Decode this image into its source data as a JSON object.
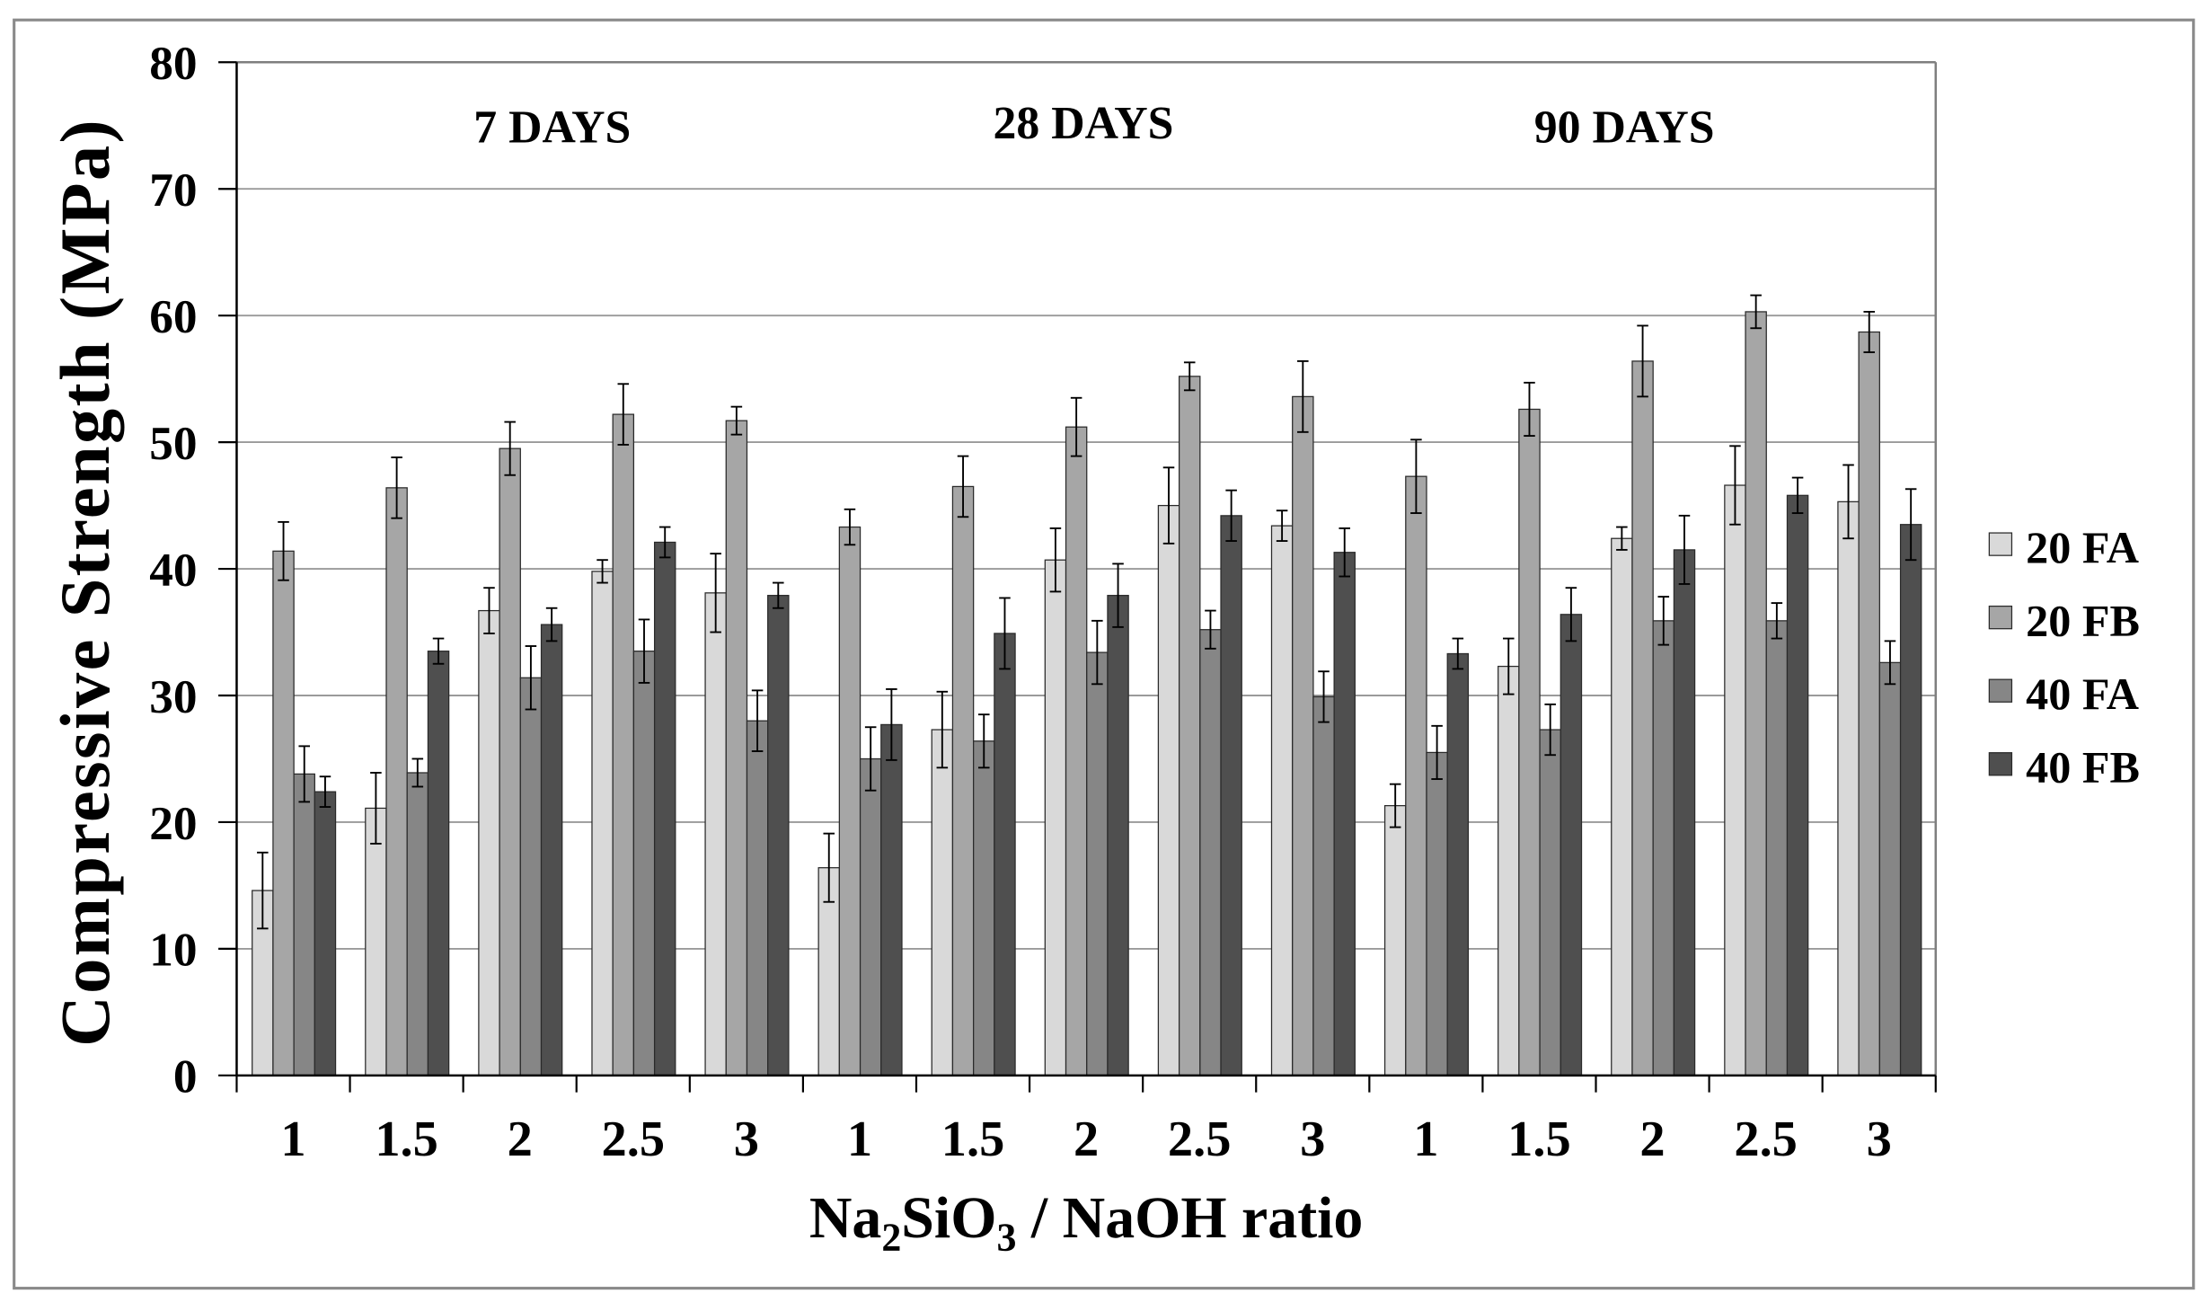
{
  "chart_data": {
    "type": "bar",
    "title": "",
    "period_labels": [
      "7 DAYS",
      "28 DAYS",
      "90 DAYS"
    ],
    "categories": [
      "1",
      "1.5",
      "2",
      "2.5",
      "3",
      "1",
      "1.5",
      "2",
      "2.5",
      "3",
      "1",
      "1.5",
      "2",
      "2.5",
      "3"
    ],
    "ylabel": "Compressive Strength (MPa)",
    "xlabel_parts": [
      {
        "text": "Na"
      },
      {
        "text": "2",
        "sub": true
      },
      {
        "text": "SiO"
      },
      {
        "text": "3",
        "sub": true
      },
      {
        "text": " / NaOH ratio"
      }
    ],
    "ylim": [
      0,
      80
    ],
    "yticks": [
      0,
      10,
      20,
      30,
      40,
      50,
      60,
      70,
      80
    ],
    "grid": true,
    "legend_position": "right",
    "series": [
      {
        "name": "20 FA",
        "color": "#d9d9d9",
        "values": [
          14.6,
          21.1,
          36.7,
          39.8,
          38.1,
          16.4,
          27.3,
          40.7,
          45.0,
          43.4,
          21.3,
          32.3,
          42.4,
          46.6,
          45.3
        ],
        "errors": [
          3.0,
          2.8,
          1.8,
          0.9,
          3.1,
          2.7,
          3.0,
          2.5,
          3.0,
          1.2,
          1.7,
          2.2,
          0.9,
          3.1,
          2.9
        ]
      },
      {
        "name": "20 FB",
        "color": "#a6a6a6",
        "values": [
          41.4,
          46.4,
          49.5,
          52.2,
          51.7,
          43.3,
          46.5,
          51.2,
          55.2,
          53.6,
          47.3,
          52.6,
          56.4,
          60.3,
          58.7
        ],
        "errors": [
          2.3,
          2.4,
          2.1,
          2.4,
          1.1,
          1.4,
          2.4,
          2.3,
          1.1,
          2.8,
          2.9,
          2.1,
          2.8,
          1.3,
          1.6
        ]
      },
      {
        "name": "40 FA",
        "color": "#868686",
        "values": [
          23.8,
          23.9,
          31.4,
          33.5,
          28.0,
          25.0,
          26.4,
          33.4,
          35.2,
          29.9,
          25.5,
          27.3,
          35.9,
          35.9,
          32.6
        ],
        "errors": [
          2.2,
          1.1,
          2.5,
          2.5,
          2.4,
          2.5,
          2.1,
          2.5,
          1.5,
          2.0,
          2.1,
          2.0,
          1.9,
          1.4,
          1.7
        ]
      },
      {
        "name": "40 FB",
        "color": "#4f4f4f",
        "values": [
          22.4,
          33.5,
          35.6,
          42.1,
          37.9,
          27.7,
          34.9,
          37.9,
          44.2,
          41.3,
          33.3,
          36.4,
          41.5,
          45.8,
          43.5
        ],
        "errors": [
          1.2,
          1.0,
          1.3,
          1.2,
          1.0,
          2.8,
          2.8,
          2.5,
          2.0,
          1.9,
          1.2,
          2.1,
          2.7,
          1.4,
          2.8
        ]
      }
    ]
  }
}
